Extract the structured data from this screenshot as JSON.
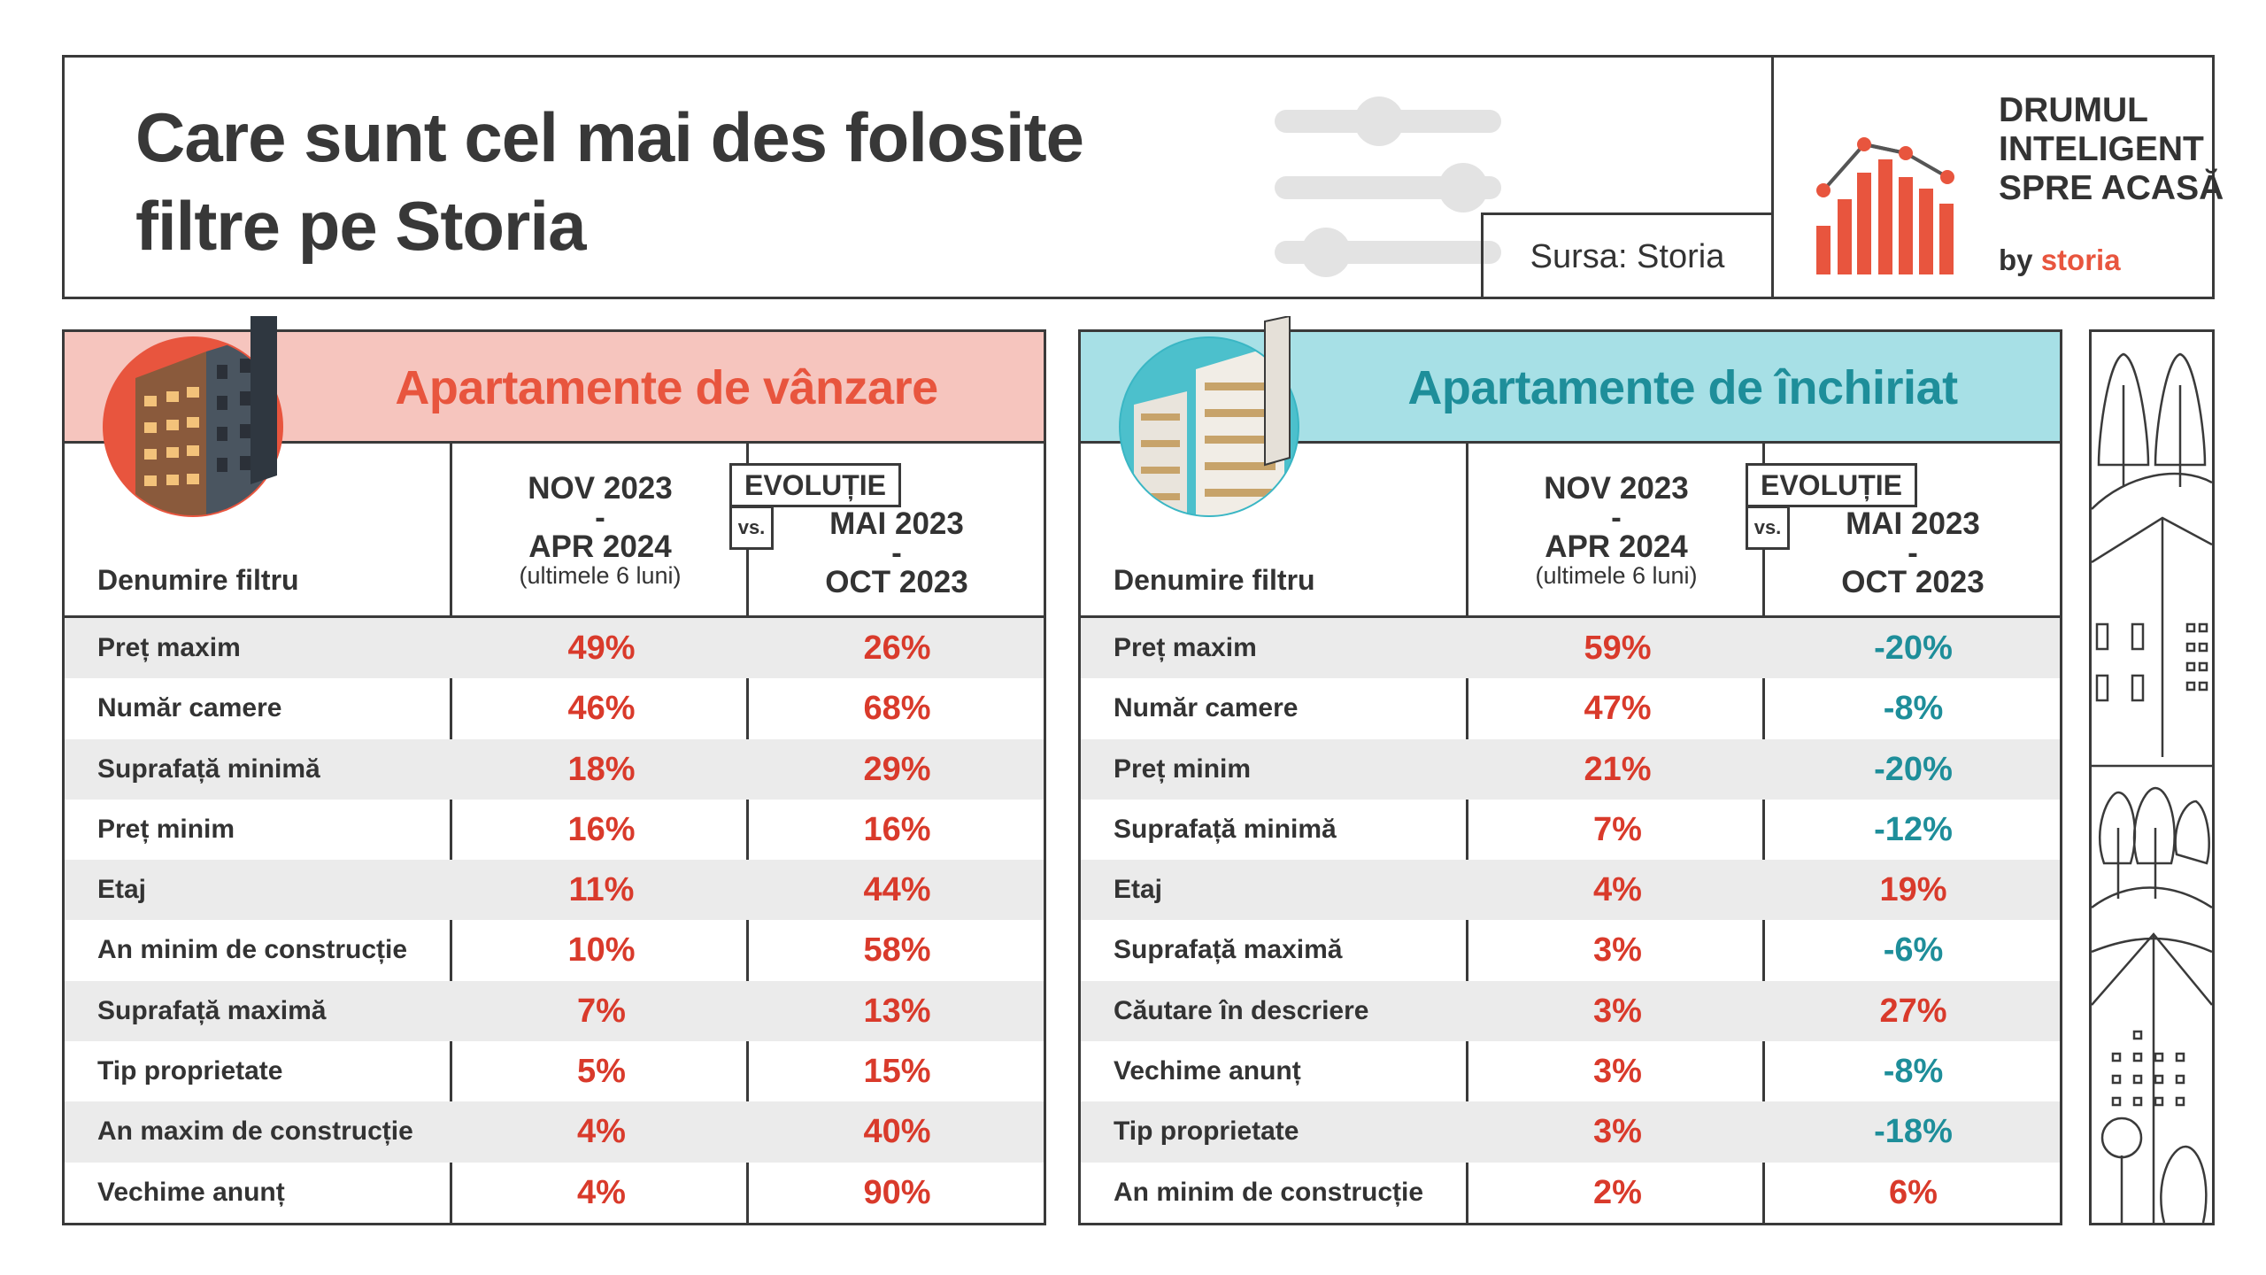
{
  "header": {
    "title_line1": "Care sunt cel mai des folosite",
    "title_line2": "filtre pe Storia",
    "source": "Sursa: Storia",
    "brand_line1": "DRUMUL",
    "brand_line2": "INTELIGENT",
    "brand_line3": "SPRE ACASĂ",
    "brand_by": "by",
    "brand_storia": "storia"
  },
  "colors": {
    "red": "#d93a2b",
    "teal": "#1e8e9a",
    "sale_header_bg": "#f6c5be",
    "rent_header_bg": "#a7e0e6",
    "brand_orange": "#e8553e"
  },
  "icons": [
    "filter-sliders-icon",
    "bar-chart-logo-icon",
    "building-photo-icon",
    "house-trees-illustration-icon"
  ],
  "tables": {
    "sale": {
      "title": "Apartamente de vânzare",
      "col_filter": "Denumire filtru",
      "col_period1_l1": "NOV 2023",
      "col_period1_l2": "-",
      "col_period1_l3": "APR 2024",
      "col_period1_note": "(ultimele 6 luni)",
      "evolution_label": "EVOLUȚIE",
      "vs_label": "vs.",
      "col_period2_l1": "MAI 2023",
      "col_period2_l2": "-",
      "col_period2_l3": "OCT 2023"
    },
    "rent": {
      "title": "Apartamente de închiriat",
      "col_filter": "Denumire filtru",
      "col_period1_l1": "NOV 2023",
      "col_period1_l2": "-",
      "col_period1_l3": "APR 2024",
      "col_period1_note": "(ultimele 6 luni)",
      "evolution_label": "EVOLUȚIE",
      "vs_label": "vs.",
      "col_period2_l1": "MAI 2023",
      "col_period2_l2": "-",
      "col_period2_l3": "OCT 2023"
    }
  },
  "chart_data": [
    {
      "type": "table",
      "title": "Apartamente de vânzare",
      "columns": [
        "Denumire filtru",
        "NOV 2023 - APR 2024 (ultimele 6 luni)",
        "EVOLUȚIE vs. MAI 2023 - OCT 2023"
      ],
      "rows": [
        {
          "name": "Preț maxim",
          "share": "49%",
          "evolution": "26%"
        },
        {
          "name": "Număr camere",
          "share": "46%",
          "evolution": "68%"
        },
        {
          "name": "Suprafață minimă",
          "share": "18%",
          "evolution": "29%"
        },
        {
          "name": "Preț minim",
          "share": "16%",
          "evolution": "16%"
        },
        {
          "name": "Etaj",
          "share": "11%",
          "evolution": "44%"
        },
        {
          "name": "An minim de construcție",
          "share": "10%",
          "evolution": "58%"
        },
        {
          "name": "Suprafață maximă",
          "share": "7%",
          "evolution": "13%"
        },
        {
          "name": "Tip proprietate",
          "share": "5%",
          "evolution": "15%"
        },
        {
          "name": "An maxim de construcție",
          "share": "4%",
          "evolution": "40%"
        },
        {
          "name": "Vechime anunț",
          "share": "4%",
          "evolution": "90%"
        }
      ]
    },
    {
      "type": "table",
      "title": "Apartamente de închiriat",
      "columns": [
        "Denumire filtru",
        "NOV 2023 - APR 2024 (ultimele 6 luni)",
        "EVOLUȚIE vs. MAI 2023 - OCT 2023"
      ],
      "rows": [
        {
          "name": "Preț maxim",
          "share": "59%",
          "evolution": "-20%"
        },
        {
          "name": "Număr camere",
          "share": "47%",
          "evolution": "-8%"
        },
        {
          "name": "Preț minim",
          "share": "21%",
          "evolution": "-20%"
        },
        {
          "name": "Suprafață minimă",
          "share": "7%",
          "evolution": "-12%"
        },
        {
          "name": "Etaj",
          "share": "4%",
          "evolution": "19%"
        },
        {
          "name": "Suprafață maximă",
          "share": "3%",
          "evolution": "-6%"
        },
        {
          "name": "Căutare în descriere",
          "share": "3%",
          "evolution": "27%"
        },
        {
          "name": "Vechime anunț",
          "share": "3%",
          "evolution": "-8%"
        },
        {
          "name": "Tip proprietate",
          "share": "3%",
          "evolution": "-18%"
        },
        {
          "name": "An minim de construcție",
          "share": "2%",
          "evolution": "6%"
        }
      ]
    }
  ]
}
